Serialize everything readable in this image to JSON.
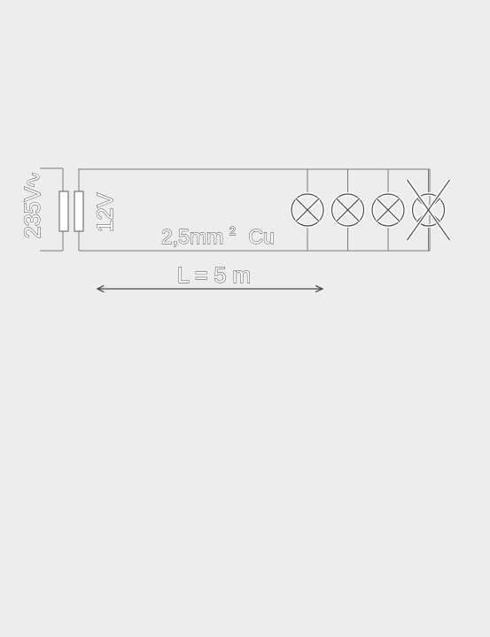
{
  "diagram": {
    "primary_voltage": "235V",
    "ac_symbol": "∿",
    "secondary_voltage": "12V",
    "cable_cross_section": "2,5mm",
    "cable_exponent": "2",
    "cable_material": "Cu",
    "length_label": "L = 5 m",
    "lamps": [
      {
        "crossed_out": false
      },
      {
        "crossed_out": false
      },
      {
        "crossed_out": false
      },
      {
        "crossed_out": true
      }
    ],
    "colors": {
      "background": "#ededed",
      "line": "#4a4a4a",
      "light_line": "#ffffff"
    }
  }
}
